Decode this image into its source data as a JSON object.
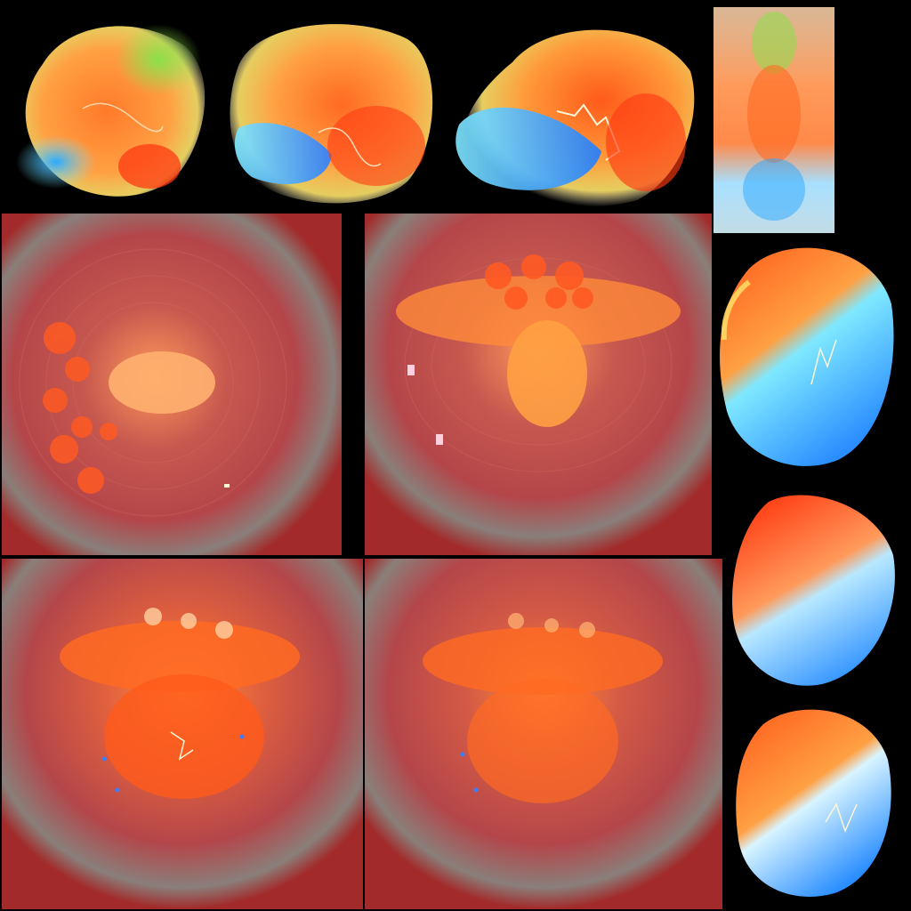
{
  "sheet": {
    "background": "#000000",
    "palette": {
      "fire_orange": "#ff7a2a",
      "fire_red": "#ff3a12",
      "fire_yellow": "#ffe46a",
      "ice_blue": "#2aa8ff",
      "ice_cyan": "#7fe8ff",
      "toxic_green": "#8be04a",
      "halo_red": "#b4464a",
      "halo_grey": "#8a7f7a",
      "spark_white": "#fff6d8"
    },
    "sprites": [
      {
        "name": "flame-blob-green-blue"
      },
      {
        "name": "flame-blob-blue-base"
      },
      {
        "name": "flame-blob-blue-lightning"
      },
      {
        "name": "flame-column-pale"
      },
      {
        "name": "flame-halo-vertical-orbs"
      },
      {
        "name": "flame-halo-horizontal-orbs"
      },
      {
        "name": "flame-halo-burst-sparks"
      },
      {
        "name": "flame-halo-burst-soft"
      },
      {
        "name": "flame-split-red-blue-1"
      },
      {
        "name": "flame-split-red-blue-2"
      },
      {
        "name": "flame-split-red-blue-3"
      }
    ]
  }
}
